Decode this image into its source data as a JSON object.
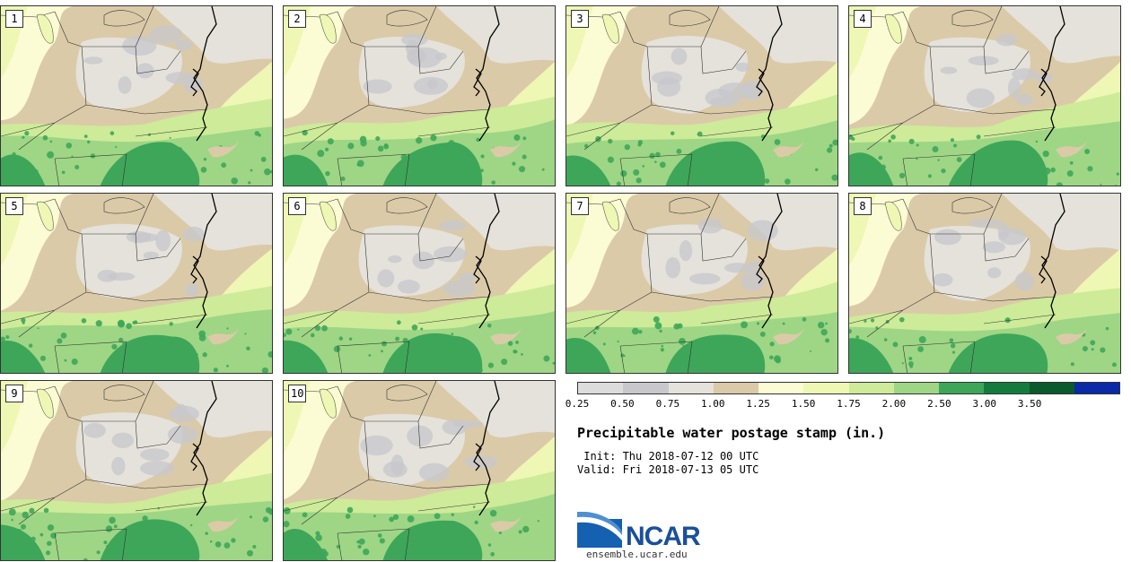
{
  "panels": [
    {
      "label": "1"
    },
    {
      "label": "2"
    },
    {
      "label": "3"
    },
    {
      "label": "4"
    },
    {
      "label": "5"
    },
    {
      "label": "6"
    },
    {
      "label": "7"
    },
    {
      "label": "8"
    },
    {
      "label": "9"
    },
    {
      "label": "10"
    }
  ],
  "legend": {
    "colors": [
      "#dcdcdc",
      "#c8c8cc",
      "#e4e2da",
      "#dbcaa8",
      "#fbfbd4",
      "#eef7b4",
      "#cdeb98",
      "#9ed685",
      "#3ea659",
      "#137c3c",
      "#0a5a2c",
      "#0a2aa8"
    ],
    "ticks": [
      "0.25",
      "0.50",
      "0.75",
      "1.00",
      "1.25",
      "1.50",
      "1.75",
      "2.00",
      "2.50",
      "3.00",
      "3.50"
    ]
  },
  "title": "Precipitable water postage stamp (in.)",
  "init": " Init: Thu 2018-07-12 00 UTC",
  "valid": "Valid: Fri 2018-07-13 05 UTC",
  "logo": {
    "text": "NCAR",
    "site": "ensemble.ucar.edu",
    "color": "#1a4f9c"
  }
}
